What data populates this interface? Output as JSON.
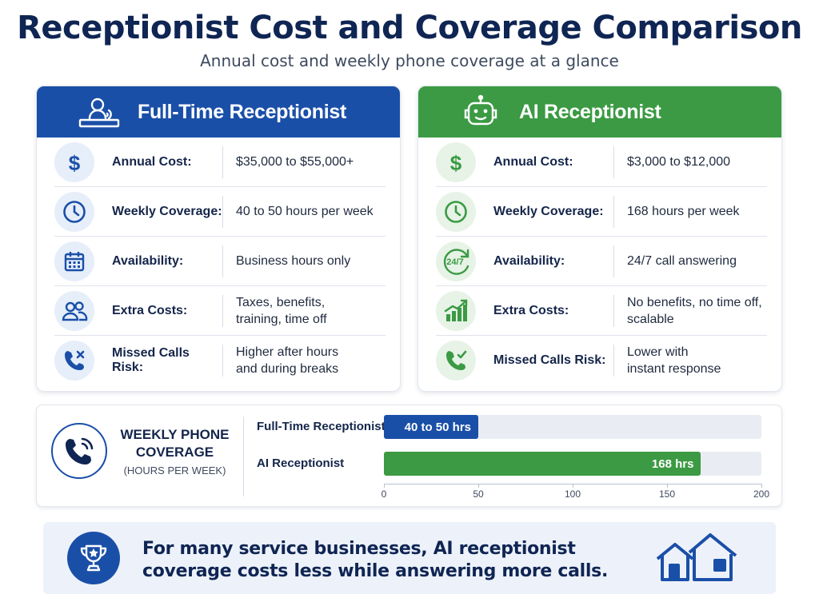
{
  "header": {
    "title": "Receptionist Cost and Coverage Comparison",
    "subtitle": "Annual cost and weekly phone coverage at a glance"
  },
  "colors": {
    "navy": "#0f2553",
    "blue": "#1a4fa8",
    "green": "#3b9a43",
    "light_blue": "#e6eefa",
    "light_green": "#e6f3e6"
  },
  "left_card": {
    "title": "Full-Time Receptionist",
    "icon": "person-at-desk-icon",
    "rows": [
      {
        "icon": "dollar-icon",
        "label": "Annual Cost:",
        "value": "$35,000 to $55,000+"
      },
      {
        "icon": "clock-icon",
        "label": "Weekly Coverage:",
        "value": "40 to 50 hours per week"
      },
      {
        "icon": "calendar-icon",
        "label": "Availability:",
        "value": "Business hours only"
      },
      {
        "icon": "people-icon",
        "label": "Extra Costs:",
        "value": "Taxes, benefits,\ntraining, time off"
      },
      {
        "icon": "missed-call-icon",
        "label": "Missed Calls Risk:",
        "value": "Higher after hours\nand during breaks"
      }
    ]
  },
  "right_card": {
    "title": "AI Receptionist",
    "icon": "robot-icon",
    "rows": [
      {
        "icon": "dollar-icon",
        "label": "Annual Cost:",
        "value": "$3,000 to $12,000"
      },
      {
        "icon": "clock-icon",
        "label": "Weekly Coverage:",
        "value": "168 hours per week"
      },
      {
        "icon": "24-7-icon",
        "label": "Availability:",
        "value": "24/7 call answering",
        "icon_text": "24/7"
      },
      {
        "icon": "growth-chart-icon",
        "label": "Extra Costs:",
        "value": "No benefits, no time off,\nscalable"
      },
      {
        "icon": "answered-call-icon",
        "label": "Missed Calls Risk:",
        "value": "Lower with\ninstant response"
      }
    ]
  },
  "coverage_panel": {
    "icon": "phone-icon",
    "title": "WEEKLY PHONE COVERAGE",
    "subtitle": "(HOURS PER WEEK)"
  },
  "chart_data": {
    "type": "bar",
    "orientation": "horizontal",
    "categories": [
      "Full-Time Receptionist",
      "AI Receptionist"
    ],
    "values": [
      50,
      168
    ],
    "data_labels": [
      "40 to 50 hrs",
      "168 hrs"
    ],
    "xlim": [
      0,
      200
    ],
    "xticks": [
      "0",
      "50",
      "100",
      "150",
      "200"
    ],
    "colors": [
      "#1a4fa8",
      "#3b9a43"
    ],
    "grid": false
  },
  "banner": {
    "icon": "trophy-icon",
    "text": "For many service businesses, AI receptionist coverage costs less while answering more calls.",
    "right_icon": "houses-icon"
  }
}
